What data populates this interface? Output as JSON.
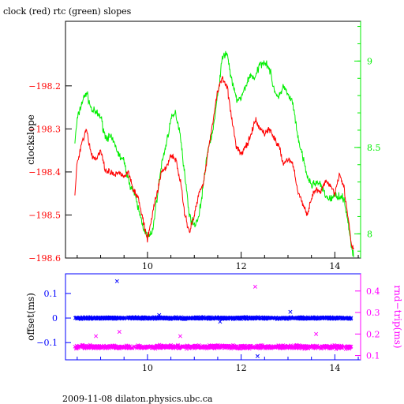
{
  "title": "clock (red) rtc (green) slopes",
  "footer": "2009-11-08 dilaton.physics.ubc.ca",
  "colors": {
    "clock": "#ff0000",
    "rtc": "#00ee00",
    "offset": "#0000ff",
    "rndtrip": "#ff00ff",
    "axis": "#000000"
  },
  "chart_data": [
    {
      "type": "line",
      "title": "clock (red) rtc (green) slopes",
      "ylabel": "clockslope",
      "xlim": [
        8.25,
        14.55
      ],
      "ylim": [
        -198.6,
        -198.05
      ],
      "y2lim": [
        7.86,
        9.23
      ],
      "x_ticks": [
        10,
        12,
        14
      ],
      "y_ticks": [
        -198.2,
        -198.3,
        -198.4,
        -198.5,
        -198.6
      ],
      "y_tick_labels": [
        "−198.2",
        "−198.3",
        "−198.4",
        "−198.5",
        "−198.6"
      ],
      "y2_ticks": [
        8,
        8.5,
        9
      ],
      "y2_tick_labels": [
        "8",
        "8.5",
        "9"
      ],
      "series": [
        {
          "name": "clock",
          "axis": "left",
          "x": [
            8.45,
            8.5,
            8.6,
            8.7,
            8.8,
            8.9,
            9.0,
            9.1,
            9.2,
            9.3,
            9.4,
            9.5,
            9.6,
            9.7,
            9.8,
            9.9,
            10.0,
            10.1,
            10.2,
            10.3,
            10.4,
            10.5,
            10.6,
            10.7,
            10.8,
            10.9,
            11.0,
            11.1,
            11.2,
            11.3,
            11.4,
            11.5,
            11.6,
            11.7,
            11.8,
            11.9,
            12.0,
            12.1,
            12.2,
            12.3,
            12.4,
            12.5,
            12.6,
            12.7,
            12.8,
            12.9,
            13.0,
            13.1,
            13.2,
            13.3,
            13.4,
            13.5,
            13.6,
            13.7,
            13.8,
            13.9,
            14.0,
            14.1,
            14.2,
            14.3,
            14.35,
            14.4
          ],
          "y": [
            -198.45,
            -198.38,
            -198.33,
            -198.3,
            -198.36,
            -198.37,
            -198.35,
            -198.4,
            -198.4,
            -198.41,
            -198.4,
            -198.41,
            -198.4,
            -198.44,
            -198.46,
            -198.51,
            -198.56,
            -198.5,
            -198.45,
            -198.4,
            -198.39,
            -198.36,
            -198.37,
            -198.42,
            -198.5,
            -198.54,
            -198.5,
            -198.45,
            -198.42,
            -198.35,
            -198.28,
            -198.21,
            -198.18,
            -198.2,
            -198.28,
            -198.34,
            -198.36,
            -198.34,
            -198.32,
            -198.28,
            -198.3,
            -198.31,
            -198.3,
            -198.32,
            -198.34,
            -198.38,
            -198.37,
            -198.38,
            -198.44,
            -198.47,
            -198.5,
            -198.46,
            -198.44,
            -198.45,
            -198.42,
            -198.43,
            -198.45,
            -198.4,
            -198.44,
            -198.52,
            -198.57,
            -198.58
          ]
        },
        {
          "name": "rtc",
          "axis": "right",
          "x": [
            8.45,
            8.5,
            8.6,
            8.7,
            8.8,
            8.9,
            9.0,
            9.1,
            9.2,
            9.3,
            9.4,
            9.5,
            9.6,
            9.7,
            9.8,
            9.9,
            10.0,
            10.1,
            10.2,
            10.3,
            10.4,
            10.5,
            10.6,
            10.7,
            10.8,
            10.9,
            11.0,
            11.1,
            11.2,
            11.3,
            11.4,
            11.5,
            11.6,
            11.7,
            11.8,
            11.9,
            12.0,
            12.1,
            12.2,
            12.3,
            12.4,
            12.5,
            12.6,
            12.7,
            12.8,
            12.9,
            13.0,
            13.1,
            13.2,
            13.3,
            13.4,
            13.5,
            13.6,
            13.7,
            13.8,
            13.9,
            14.0,
            14.1,
            14.2,
            14.3,
            14.35,
            14.4
          ],
          "y": [
            8.53,
            8.66,
            8.76,
            8.82,
            8.72,
            8.7,
            8.68,
            8.56,
            8.56,
            8.52,
            8.45,
            8.42,
            8.3,
            8.25,
            8.15,
            8.05,
            7.98,
            8.0,
            8.2,
            8.4,
            8.52,
            8.66,
            8.7,
            8.58,
            8.33,
            8.1,
            8.05,
            8.1,
            8.3,
            8.5,
            8.6,
            8.8,
            9.02,
            9.05,
            8.88,
            8.78,
            8.78,
            8.86,
            8.92,
            8.9,
            8.98,
            9.0,
            8.96,
            8.84,
            8.78,
            8.86,
            8.8,
            8.76,
            8.57,
            8.46,
            8.34,
            8.28,
            8.3,
            8.28,
            8.22,
            8.2,
            8.22,
            8.22,
            8.2,
            8.04,
            7.92,
            7.87
          ]
        }
      ]
    },
    {
      "type": "scatter",
      "ylabel": "offset(ms)",
      "y2label": "rnd−trip(ms)",
      "xlim": [
        8.25,
        14.55
      ],
      "ylim": [
        -0.17,
        0.18
      ],
      "y2lim": [
        0.08,
        0.48
      ],
      "x_ticks": [
        10,
        12,
        14
      ],
      "y_ticks": [
        0.1,
        0,
        -0.1
      ],
      "y_tick_labels": [
        "0.1",
        "0",
        "−0.1"
      ],
      "y2_ticks": [
        0.1,
        0.2,
        0.3,
        0.4
      ],
      "y2_tick_labels": [
        "0.1",
        "0.2",
        "0.3",
        "0.4"
      ],
      "series": [
        {
          "name": "offset",
          "axis": "left",
          "marker": "x",
          "x_range": [
            8.45,
            14.35
          ],
          "baseline": 0.0,
          "outliers": [
            [
              9.35,
              0.15
            ],
            [
              11.55,
              -0.015
            ],
            [
              12.35,
              -0.155
            ],
            [
              13.05,
              0.025
            ],
            [
              10.25,
              0.012
            ]
          ]
        },
        {
          "name": "rndtrip",
          "axis": "right",
          "marker": "x",
          "x_range": [
            8.45,
            14.35
          ],
          "baseline": 0.14,
          "outliers": [
            [
              12.3,
              0.42
            ],
            [
              9.4,
              0.21
            ],
            [
              10.7,
              0.19
            ],
            [
              13.6,
              0.2
            ],
            [
              8.9,
              0.19
            ]
          ]
        }
      ]
    }
  ]
}
